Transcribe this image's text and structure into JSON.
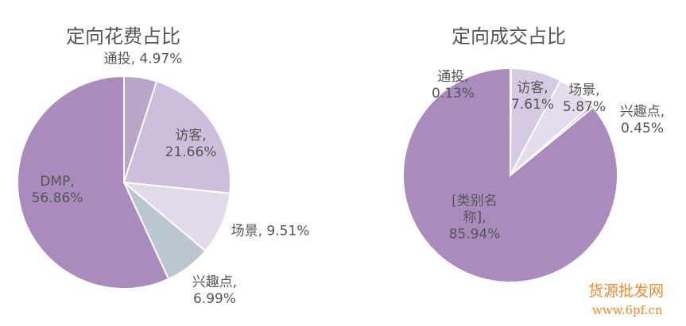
{
  "chart_data": [
    {
      "type": "pie",
      "title": "定向花费占比",
      "categories": [
        "通投,",
        "访客,",
        "场景,",
        "兴趣点,",
        "DMP,"
      ],
      "values": [
        4.97,
        21.66,
        9.51,
        6.99,
        56.86
      ],
      "value_labels": [
        "4.97%",
        "21.66%",
        "9.51%",
        "6.99%",
        "56.86%"
      ],
      "colors": [
        "#b9a4ca",
        "#cdbfdc",
        "#e2d9eb",
        "#bcc6d0",
        "#a98bbd"
      ]
    },
    {
      "type": "pie",
      "title": "定向成交占比",
      "categories": [
        "通投,",
        "访客,",
        "场景,",
        "兴趣点,",
        "[类别名称],"
      ],
      "values": [
        0.13,
        7.61,
        5.87,
        0.45,
        85.94
      ],
      "value_labels": [
        "0.13%",
        "7.61%",
        "5.87%",
        "0.45%",
        "85.94%"
      ],
      "colors": [
        "#b9a4ca",
        "#d6cae2",
        "#e4dcec",
        "#c8bbd8",
        "#a98bbd"
      ]
    }
  ],
  "watermark": {
    "name": "货源批发网",
    "url": "www.6pf.cn"
  }
}
